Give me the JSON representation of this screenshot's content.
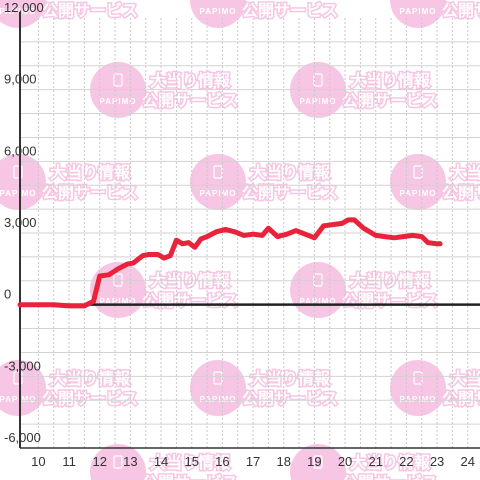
{
  "watermark": {
    "brand": "PAPIMO",
    "line1": "大当り情報",
    "line2": "公開サービス",
    "color": "#f7c6e4"
  },
  "chart_data": {
    "type": "line",
    "title": "",
    "xlabel": "",
    "ylabel": "",
    "xlim": [
      9.4,
      24.4
    ],
    "ylim": [
      -6000,
      12000
    ],
    "x_ticks": [
      10,
      11,
      12,
      13,
      14,
      15,
      16,
      17,
      18,
      19,
      20,
      21,
      22,
      23,
      24
    ],
    "x_tick_labels": [
      "10",
      "11",
      "12",
      "13",
      "14",
      "15",
      "16",
      "17",
      "18",
      "19",
      "20",
      "21",
      "22",
      "23",
      "24"
    ],
    "y_ticks": [
      -6000,
      -3000,
      0,
      3000,
      6000,
      9000,
      12000
    ],
    "y_tick_labels": [
      "-6,000",
      "-3,000",
      "0",
      "3,000",
      "6,000",
      "9,000",
      "12,000"
    ],
    "grid": true,
    "color": "#e8233b",
    "series": [
      {
        "x": [
          9.4,
          10.0,
          10.5,
          11.0,
          11.1,
          11.5,
          11.8,
          12.0,
          12.3,
          12.6,
          12.9,
          13.1,
          13.4,
          13.6,
          13.9,
          14.1,
          14.3,
          14.5,
          14.7,
          14.9,
          15.1,
          15.3,
          15.5,
          15.8,
          16.1,
          16.4,
          16.7,
          17.0,
          17.3,
          17.5,
          17.8,
          18.1,
          18.4,
          18.7,
          19.0,
          19.3,
          19.6,
          19.9,
          20.1,
          20.3,
          20.6,
          21.0,
          21.3,
          21.6,
          21.9,
          22.2,
          22.5,
          22.7,
          23.0,
          23.1
        ],
        "y": [
          0,
          0,
          0,
          -50,
          -50,
          -50,
          150,
          1200,
          1250,
          1500,
          1700,
          1750,
          2050,
          2100,
          2100,
          1950,
          2050,
          2700,
          2550,
          2600,
          2400,
          2750,
          2850,
          3050,
          3150,
          3050,
          2900,
          2950,
          2900,
          3200,
          2850,
          2950,
          3100,
          2950,
          2800,
          3300,
          3350,
          3400,
          3550,
          3550,
          3200,
          2900,
          2850,
          2800,
          2850,
          2900,
          2850,
          2600,
          2550,
          2550
        ]
      }
    ]
  }
}
